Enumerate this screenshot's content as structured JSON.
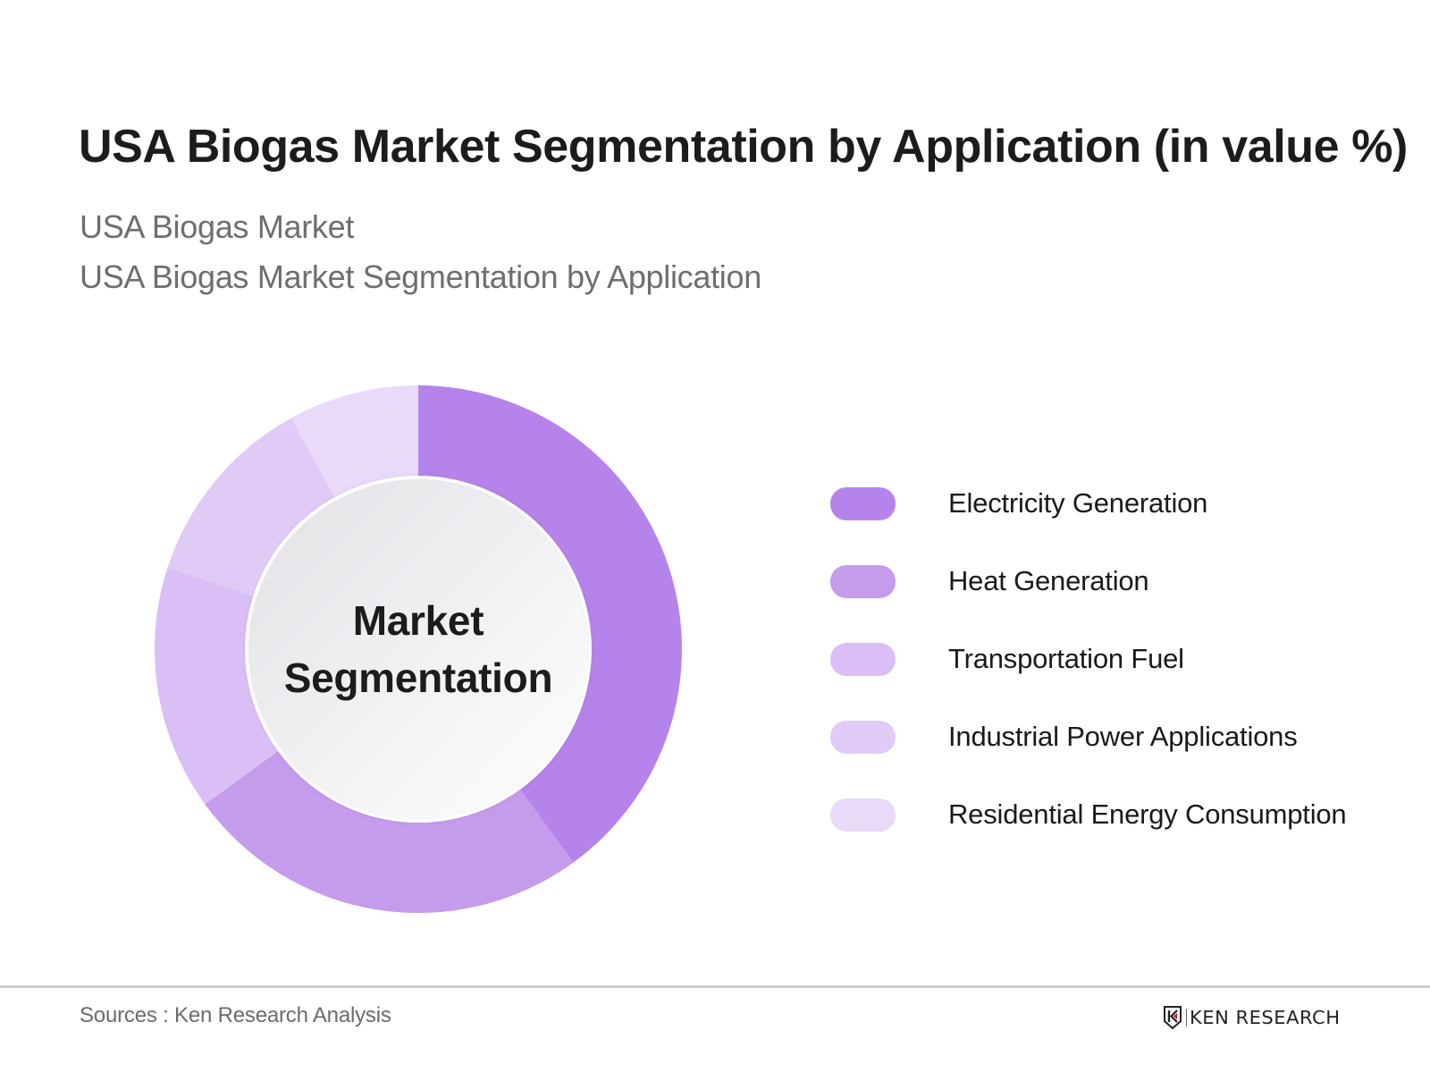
{
  "header": {
    "title": "USA Biogas Market Segmentation by Application (in value %)",
    "subtitle_1": "USA Biogas Market",
    "subtitle_2": "USA Biogas Market Segmentation by Application"
  },
  "donut": {
    "center_line_1": "Market",
    "center_line_2": "Segmentation"
  },
  "legend": {
    "items": [
      {
        "label": "Electricity Generation",
        "color": "#b584ea"
      },
      {
        "label": "Heat Generation",
        "color": "#c59cec"
      },
      {
        "label": "Transportation Fuel",
        "color": "#d9bff5"
      },
      {
        "label": "Industrial Power Applications",
        "color": "#e0cbf6"
      },
      {
        "label": "Residential Energy Consumption",
        "color": "#e9dafa"
      }
    ]
  },
  "footer": {
    "sources": "Sources : Ken Research Analysis",
    "logo_text": "KEN RESEARCH",
    "logo_accent_color": "#c8102e"
  },
  "chart_data": {
    "type": "pie",
    "subtype": "donut",
    "title": "USA Biogas Market Segmentation by Application (in value %)",
    "subtitle": [
      "USA Biogas Market",
      "USA Biogas Market Segmentation by Application"
    ],
    "center_label": "Market Segmentation",
    "categories": [
      "Electricity Generation",
      "Heat Generation",
      "Transportation Fuel",
      "Industrial Power Applications",
      "Residential Energy Consumption"
    ],
    "values": [
      40,
      25,
      15,
      12,
      8
    ],
    "unit": "%",
    "colors": [
      "#b584ea",
      "#c59cec",
      "#d9bff5",
      "#e0cbf6",
      "#e9dafa"
    ],
    "start_angle": "12 o'clock",
    "direction": "clockwise",
    "legend_position": "right",
    "data_labels": false,
    "source": "Sources : Ken Research Analysis"
  }
}
